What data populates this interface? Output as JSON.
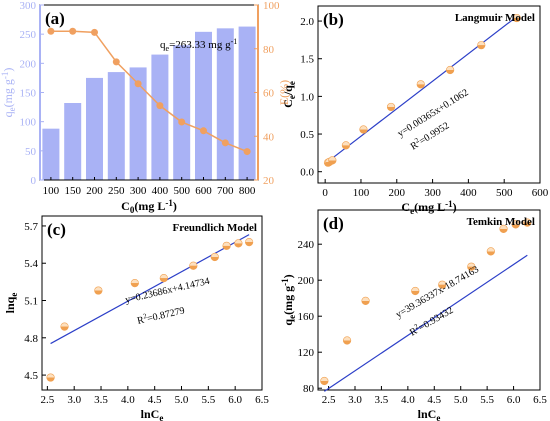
{
  "chart_data": [
    {
      "id": "a",
      "type": "bar",
      "panel_label": "(a)",
      "categories": [
        "100",
        "150",
        "200",
        "250",
        "300",
        "400",
        "500",
        "600",
        "700",
        "800"
      ],
      "xlabel": "C",
      "xlabel_sub": "0",
      "xlabel_unit": "(mg L",
      "xlabel_sup": "-1",
      "xlabel_close": ")",
      "ylabel": "q",
      "ylabel_sub": "e",
      "ylabel_unit": "(mg g",
      "ylabel_sup": "-1",
      "ylabel_close": ")",
      "y2label": "E(%)",
      "annotation_text": "q",
      "annotation_sub": "e",
      "annotation_value": "=263.33 mg g",
      "annotation_sup": "-1",
      "ylim": [
        0,
        300
      ],
      "y2lim": [
        20,
        100
      ],
      "yticks": [
        "0",
        "50",
        "100",
        "150",
        "200",
        "250",
        "300"
      ],
      "y2ticks": [
        "20",
        "40",
        "60",
        "80",
        "100"
      ],
      "series": [
        {
          "kind": "bar",
          "values": [
            88,
            132,
            175,
            185,
            193,
            215,
            231,
            254,
            260,
            263
          ],
          "color": "#a9b2f5"
        },
        {
          "kind": "line",
          "axis": "right",
          "values": [
            88,
            88,
            87.5,
            74,
            64,
            54,
            46.5,
            42.5,
            37,
            33
          ],
          "color": "#f0a060"
        }
      ],
      "left_axis_color": "#a9b2f5",
      "right_axis_color": "#f0a060"
    },
    {
      "id": "b",
      "type": "scatter",
      "panel_label": "(b)",
      "model_name": "Langmuir Model",
      "xlabel": "C",
      "xlabel_sub": "e",
      "xlabel_unit": "(mg L",
      "xlabel_sup": "-1",
      "xlabel_close": ")",
      "ylabel": "C",
      "ylabel_sub": "e",
      "ylabel_mid": "/q",
      "ylabel_sub2": "e",
      "xlim": [
        -20,
        600
      ],
      "ylim": [
        -0.15,
        2.2
      ],
      "xticks": [
        0,
        100,
        200,
        300,
        400,
        500,
        600
      ],
      "yticks": [
        0.0,
        0.5,
        1.0,
        1.5,
        2.0
      ],
      "ytick_labels": [
        "0.0",
        "0.5",
        "1.0",
        "1.5",
        "2.0"
      ],
      "x": [
        8,
        12,
        20,
        58,
        107,
        184,
        267,
        349,
        436,
        535
      ],
      "y": [
        0.12,
        0.13,
        0.15,
        0.35,
        0.56,
        0.86,
        1.16,
        1.35,
        1.68,
        2.04
      ],
      "fit": {
        "slope": 0.00365,
        "intercept": 0.1062,
        "x_range": [
          5,
          540
        ]
      },
      "equation": "y=0.00365x+0.1062",
      "r2": "R",
      "r2_sup": "2",
      "r2_value": "=0.9952",
      "marker_color": "#f0a050",
      "line_color": "#2c3fc8"
    },
    {
      "id": "c",
      "type": "scatter",
      "panel_label": "(c)",
      "model_name": "Freundlich Model",
      "xlabel": "lnC",
      "xlabel_sub": "e",
      "ylabel": "lnq",
      "ylabel_sub": "e",
      "xlim": [
        2.4,
        6.5
      ],
      "ylim": [
        4.38,
        5.78
      ],
      "xticks": [
        2.5,
        3.0,
        3.5,
        4.0,
        4.5,
        5.0,
        5.5,
        6.0,
        6.5
      ],
      "xtick_labels": [
        "2.5",
        "3.0",
        "3.5",
        "4.0",
        "4.5",
        "5.0",
        "5.5",
        "6.0",
        "6.5"
      ],
      "yticks": [
        4.5,
        4.8,
        5.1,
        5.4,
        5.7
      ],
      "ytick_labels": [
        "4.5",
        "4.8",
        "5.1",
        "5.4",
        "5.7"
      ],
      "x": [
        2.56,
        2.82,
        3.45,
        4.13,
        4.67,
        5.22,
        5.62,
        5.84,
        6.06,
        6.26
      ],
      "y": [
        4.48,
        4.89,
        5.18,
        5.24,
        5.28,
        5.38,
        5.45,
        5.54,
        5.56,
        5.57
      ],
      "fit": {
        "slope": 0.23686,
        "intercept": 4.14734,
        "x_range": [
          2.56,
          6.26
        ]
      },
      "equation": "y=0.23686x+4.14734",
      "r2": "R",
      "r2_sup": "2",
      "r2_value": "=0.87279",
      "marker_color": "#f0a050",
      "line_color": "#2c3fc8"
    },
    {
      "id": "d",
      "type": "scatter",
      "panel_label": "(d)",
      "model_name": "Temkin Model",
      "xlabel": "lnC",
      "xlabel_sub": "e",
      "ylabel": "q",
      "ylabel_sub": "e",
      "ylabel_unit": "(mg g",
      "ylabel_sup": "-1",
      "ylabel_close": ")",
      "xlim": [
        2.3,
        6.5
      ],
      "ylim": [
        78,
        278
      ],
      "xticks": [
        2.5,
        3.0,
        3.5,
        4.0,
        4.5,
        5.0,
        5.5,
        6.0,
        6.5
      ],
      "xtick_labels": [
        "2.5",
        "3.0",
        "3.5",
        "4.0",
        "4.5",
        "5.0",
        "5.5",
        "6.0",
        "6.5"
      ],
      "yticks": [
        80,
        120,
        160,
        200,
        240
      ],
      "ytick_labels": [
        "80",
        "120",
        "160",
        "200",
        "240"
      ],
      "x": [
        2.42,
        2.85,
        3.2,
        4.14,
        4.65,
        5.2,
        5.57,
        5.81,
        6.04,
        6.26
      ],
      "y": [
        88,
        133,
        177,
        188,
        195,
        215,
        232,
        257,
        262,
        264
      ],
      "fit": {
        "slope": 39.36337,
        "intercept": -18.74163,
        "x_range": [
          2.42,
          6.26
        ]
      },
      "equation": "y=39.36337x-18.74163",
      "r2": "R",
      "r2_sup": "2",
      "r2_value": "=0.93432",
      "marker_color": "#f0a050",
      "line_color": "#2c3fc8"
    }
  ]
}
